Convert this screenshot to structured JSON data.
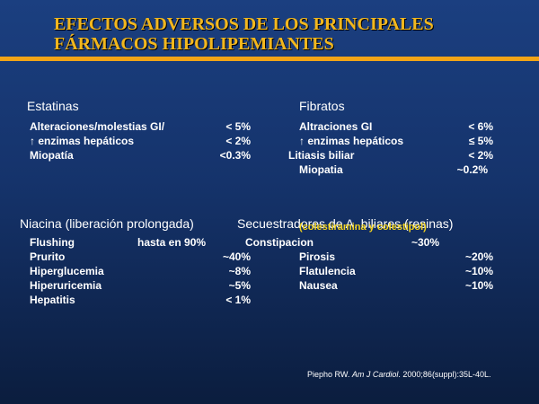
{
  "title": {
    "line1": "EFECTOS ADVERSOS DE LOS PRINCIPALES",
    "line2": "FÁRMACOS HIPOLIPEMIANTES"
  },
  "colors": {
    "title": "#f2b71e",
    "rule": "#f2a416",
    "overlay": "#f2d21e"
  },
  "estatinas": {
    "heading": "Estatinas",
    "rows": [
      {
        "label": "Alteraciones/molestias GI/",
        "value": "< 5%"
      },
      {
        "label": "enzimas hepáticos",
        "value": "< 2%",
        "icon": "up-arrow-icon"
      },
      {
        "label": "Miopatía",
        "value": "<0.3%"
      }
    ]
  },
  "fibratos": {
    "heading": "Fibratos",
    "rows": [
      {
        "label": "Altraciones GI",
        "value": "< 6%"
      },
      {
        "label": "enzimas hepáticos",
        "value": "≤ 5%",
        "icon": "up-arrow-icon"
      },
      {
        "label": "Litiasis biliar",
        "value": "< 2%"
      },
      {
        "label": "Miopatia",
        "value": "~0.2%"
      }
    ]
  },
  "niacina": {
    "heading": "Niacina (liberación prolongada)",
    "rows": [
      {
        "label": "Flushing",
        "mid": "hasta en 90%"
      },
      {
        "label": "Prurito",
        "value": "~40%"
      },
      {
        "label": "Hiperglucemia",
        "value": "~8%"
      },
      {
        "label": "Hiperuricemia",
        "value": "~5%"
      },
      {
        "label": "Hepatitis",
        "value": "< 1%"
      }
    ]
  },
  "secuestradores": {
    "heading": "Secuestradores de A. biliares (resinas)",
    "subheading": "(colestiramina y colestipol)",
    "rows": [
      {
        "label": "Constipacion",
        "value": "~30%"
      },
      {
        "label": "Pirosis",
        "value": "~20%"
      },
      {
        "label": "Flatulencia",
        "value": "~10%"
      },
      {
        "label": "Nausea",
        "value": "~10%"
      }
    ]
  },
  "citation": {
    "author": "Piepho RW.",
    "journal": "Am J Cardiol",
    "rest": ". 2000;86(suppl):35L-40L."
  }
}
